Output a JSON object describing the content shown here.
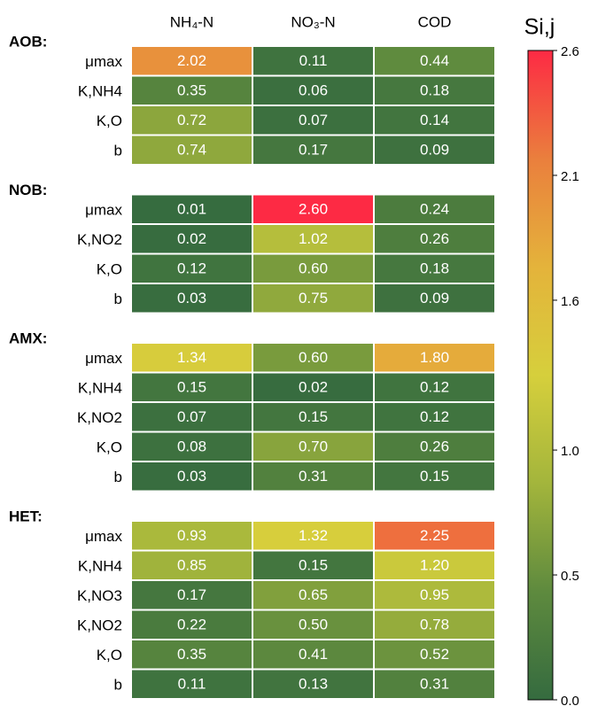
{
  "chart_data": {
    "type": "heatmap",
    "columns": [
      "NH₄-N",
      "NO₃-N",
      "COD"
    ],
    "groups": [
      {
        "name": "AOB:",
        "rows": [
          "μmax",
          "K,NH4",
          "K,O",
          "b"
        ],
        "values": [
          [
            2.02,
            0.11,
            0.44
          ],
          [
            0.35,
            0.06,
            0.18
          ],
          [
            0.72,
            0.07,
            0.14
          ],
          [
            0.74,
            0.17,
            0.09
          ]
        ],
        "value_labels": [
          [
            "2.02",
            "0.11",
            "0.44"
          ],
          [
            "0.35",
            "0.06",
            "0.18"
          ],
          [
            "0.72",
            "0.07",
            "0.14"
          ],
          [
            "0.74",
            "0.17",
            "0.09"
          ]
        ]
      },
      {
        "name": "NOB:",
        "rows": [
          "μmax",
          "K,NO2",
          "K,O",
          "b"
        ],
        "values": [
          [
            0.01,
            2.6,
            0.24
          ],
          [
            0.02,
            1.02,
            0.26
          ],
          [
            0.12,
            0.6,
            0.18
          ],
          [
            0.03,
            0.75,
            0.09
          ]
        ],
        "value_labels": [
          [
            "0.01",
            "2.60",
            "0.24"
          ],
          [
            "0.02",
            "1.02",
            "0.26"
          ],
          [
            "0.12",
            "0.60",
            "0.18"
          ],
          [
            "0.03",
            "0.75",
            "0.09"
          ]
        ]
      },
      {
        "name": "AMX:",
        "rows": [
          "μmax",
          "K,NH4",
          "K,NO2",
          "K,O",
          "b"
        ],
        "values": [
          [
            1.34,
            0.6,
            1.8
          ],
          [
            0.15,
            0.02,
            0.12
          ],
          [
            0.07,
            0.15,
            0.12
          ],
          [
            0.08,
            0.7,
            0.26
          ],
          [
            0.03,
            0.31,
            0.15
          ]
        ],
        "value_labels": [
          [
            "1.34",
            "0.60",
            "1.80"
          ],
          [
            "0.15",
            "0.02",
            "0.12"
          ],
          [
            "0.07",
            "0.15",
            "0.12"
          ],
          [
            "0.08",
            "0.70",
            "0.26"
          ],
          [
            "0.03",
            "0.31",
            "0.15"
          ]
        ]
      },
      {
        "name": "HET:",
        "rows": [
          "μmax",
          "K,NH4",
          "K,NO3",
          "K,NO2",
          "K,O",
          "b"
        ],
        "values": [
          [
            0.93,
            1.32,
            2.25
          ],
          [
            0.85,
            0.15,
            1.2
          ],
          [
            0.17,
            0.65,
            0.95
          ],
          [
            0.22,
            0.5,
            0.78
          ],
          [
            0.35,
            0.41,
            0.52
          ],
          [
            0.11,
            0.13,
            0.31
          ]
        ],
        "value_labels": [
          [
            "0.93",
            "1.32",
            "2.25"
          ],
          [
            "0.85",
            "0.15",
            "1.20"
          ],
          [
            "0.17",
            "0.65",
            "0.95"
          ],
          [
            "0.22",
            "0.50",
            "0.78"
          ],
          [
            "0.35",
            "0.41",
            "0.52"
          ],
          [
            "0.11",
            "0.13",
            "0.31"
          ]
        ]
      }
    ],
    "colorbar": {
      "title": "Si,j",
      "lim": [
        0,
        2.6
      ],
      "ticks": [
        {
          "value": 0,
          "label": "0.0"
        },
        0.5,
        {
          "value": 1,
          "label": "1.0"
        },
        1.6,
        2.1,
        2.6
      ],
      "colors": [
        "#356b3f",
        "#5e8a3e",
        "#a3b53c",
        "#d6cf3c",
        "#e4b33b",
        "#ea7f3d",
        "#fd2a44"
      ]
    }
  }
}
